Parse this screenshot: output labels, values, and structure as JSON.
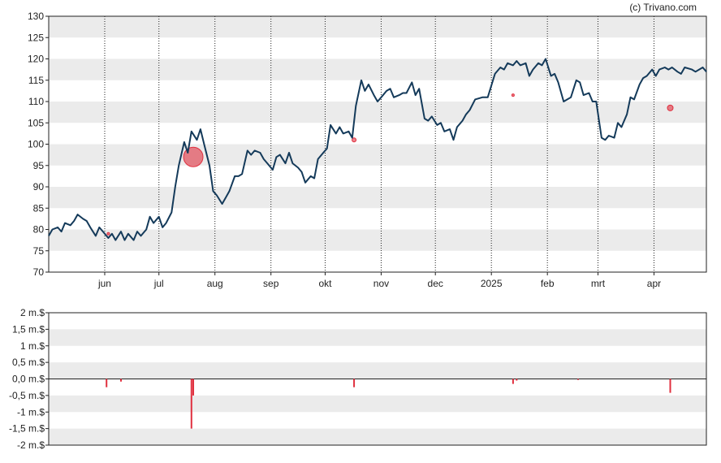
{
  "copyright": "(c) Trivano.com",
  "chart_data": [
    {
      "type": "line",
      "ylim": [
        70,
        130
      ],
      "yticks": [
        70,
        75,
        80,
        85,
        90,
        95,
        100,
        105,
        110,
        115,
        120,
        125,
        130
      ],
      "grid": true,
      "x_start": "2024-05-01",
      "x_end": "2025-04-30",
      "month_ticks": [
        {
          "label": "jun",
          "date": "2024-06-01"
        },
        {
          "label": "jul",
          "date": "2024-07-01"
        },
        {
          "label": "aug",
          "date": "2024-08-01"
        },
        {
          "label": "sep",
          "date": "2024-09-01"
        },
        {
          "label": "okt",
          "date": "2024-10-01"
        },
        {
          "label": "nov",
          "date": "2024-11-01"
        },
        {
          "label": "dec",
          "date": "2024-12-01"
        },
        {
          "label": "2025",
          "date": "2025-01-01"
        },
        {
          "label": "feb",
          "date": "2025-02-01"
        },
        {
          "label": "mrt",
          "date": "2025-03-01"
        },
        {
          "label": "apr",
          "date": "2025-04-01"
        }
      ],
      "line_color": "#143a5a",
      "marker_color": "#e0303f",
      "price_series": [
        [
          "2024-05-01",
          78.5
        ],
        [
          "2024-05-03",
          80.0
        ],
        [
          "2024-05-06",
          80.5
        ],
        [
          "2024-05-08",
          79.5
        ],
        [
          "2024-05-10",
          81.5
        ],
        [
          "2024-05-13",
          81.0
        ],
        [
          "2024-05-15",
          82.0
        ],
        [
          "2024-05-17",
          83.5
        ],
        [
          "2024-05-20",
          82.5
        ],
        [
          "2024-05-22",
          82.0
        ],
        [
          "2024-05-24",
          80.5
        ],
        [
          "2024-05-27",
          78.5
        ],
        [
          "2024-05-29",
          80.5
        ],
        [
          "2024-05-31",
          79.5
        ],
        [
          "2024-06-03",
          78.0
        ],
        [
          "2024-06-05",
          79.0
        ],
        [
          "2024-06-07",
          77.5
        ],
        [
          "2024-06-10",
          79.5
        ],
        [
          "2024-06-12",
          77.5
        ],
        [
          "2024-06-14",
          79.0
        ],
        [
          "2024-06-17",
          77.5
        ],
        [
          "2024-06-19",
          79.5
        ],
        [
          "2024-06-21",
          78.5
        ],
        [
          "2024-06-24",
          80.0
        ],
        [
          "2024-06-26",
          83.0
        ],
        [
          "2024-06-28",
          81.5
        ],
        [
          "2024-07-01",
          83.0
        ],
        [
          "2024-07-03",
          80.5
        ],
        [
          "2024-07-05",
          81.5
        ],
        [
          "2024-07-08",
          84.0
        ],
        [
          "2024-07-10",
          90.0
        ],
        [
          "2024-07-12",
          95.0
        ],
        [
          "2024-07-15",
          100.5
        ],
        [
          "2024-07-17",
          98.0
        ],
        [
          "2024-07-19",
          103.0
        ],
        [
          "2024-07-22",
          101.0
        ],
        [
          "2024-07-24",
          103.5
        ],
        [
          "2024-07-26",
          100.0
        ],
        [
          "2024-07-29",
          95.0
        ],
        [
          "2024-07-31",
          89.0
        ],
        [
          "2024-08-02",
          88.0
        ],
        [
          "2024-08-05",
          86.0
        ],
        [
          "2024-08-07",
          87.5
        ],
        [
          "2024-08-09",
          89.0
        ],
        [
          "2024-08-12",
          92.5
        ],
        [
          "2024-08-14",
          92.5
        ],
        [
          "2024-08-16",
          93.0
        ],
        [
          "2024-08-19",
          98.5
        ],
        [
          "2024-08-21",
          97.5
        ],
        [
          "2024-08-23",
          98.5
        ],
        [
          "2024-08-26",
          98.0
        ],
        [
          "2024-08-28",
          96.5
        ],
        [
          "2024-08-30",
          95.5
        ],
        [
          "2024-09-02",
          94.0
        ],
        [
          "2024-09-04",
          97.0
        ],
        [
          "2024-09-06",
          97.5
        ],
        [
          "2024-09-09",
          95.5
        ],
        [
          "2024-09-11",
          98.0
        ],
        [
          "2024-09-13",
          95.5
        ],
        [
          "2024-09-16",
          94.5
        ],
        [
          "2024-09-18",
          93.5
        ],
        [
          "2024-09-20",
          91.0
        ],
        [
          "2024-09-23",
          92.5
        ],
        [
          "2024-09-25",
          92.0
        ],
        [
          "2024-09-27",
          96.5
        ],
        [
          "2024-09-30",
          98.0
        ],
        [
          "2024-10-02",
          99.0
        ],
        [
          "2024-10-04",
          104.5
        ],
        [
          "2024-10-07",
          102.5
        ],
        [
          "2024-10-09",
          104.0
        ],
        [
          "2024-10-11",
          102.5
        ],
        [
          "2024-10-14",
          103.0
        ],
        [
          "2024-10-16",
          101.5
        ],
        [
          "2024-10-18",
          109.0
        ],
        [
          "2024-10-21",
          115.0
        ],
        [
          "2024-10-23",
          112.5
        ],
        [
          "2024-10-25",
          114.0
        ],
        [
          "2024-10-28",
          111.5
        ],
        [
          "2024-10-30",
          110.0
        ],
        [
          "2024-11-01",
          111.0
        ],
        [
          "2024-11-04",
          112.5
        ],
        [
          "2024-11-06",
          113.0
        ],
        [
          "2024-11-08",
          111.0
        ],
        [
          "2024-11-11",
          111.5
        ],
        [
          "2024-11-13",
          112.0
        ],
        [
          "2024-11-15",
          112.0
        ],
        [
          "2024-11-18",
          114.5
        ],
        [
          "2024-11-20",
          111.5
        ],
        [
          "2024-11-22",
          113.0
        ],
        [
          "2024-11-25",
          106.0
        ],
        [
          "2024-11-27",
          105.5
        ],
        [
          "2024-11-29",
          106.5
        ],
        [
          "2024-12-02",
          104.5
        ],
        [
          "2024-12-04",
          105.0
        ],
        [
          "2024-12-06",
          103.0
        ],
        [
          "2024-12-09",
          103.5
        ],
        [
          "2024-12-11",
          101.0
        ],
        [
          "2024-12-13",
          104.0
        ],
        [
          "2024-12-16",
          105.5
        ],
        [
          "2024-12-18",
          107.0
        ],
        [
          "2024-12-20",
          108.0
        ],
        [
          "2024-12-23",
          110.5
        ],
        [
          "2024-12-27",
          111.0
        ],
        [
          "2024-12-30",
          111.0
        ],
        [
          "2025-01-03",
          116.5
        ],
        [
          "2025-01-06",
          118.0
        ],
        [
          "2025-01-08",
          117.5
        ],
        [
          "2025-01-10",
          119.0
        ],
        [
          "2025-01-13",
          118.5
        ],
        [
          "2025-01-15",
          119.5
        ],
        [
          "2025-01-17",
          118.5
        ],
        [
          "2025-01-20",
          119.0
        ],
        [
          "2025-01-22",
          116.0
        ],
        [
          "2025-01-24",
          117.5
        ],
        [
          "2025-01-27",
          119.0
        ],
        [
          "2025-01-29",
          118.5
        ],
        [
          "2025-01-31",
          120.0
        ],
        [
          "2025-02-03",
          116.0
        ],
        [
          "2025-02-05",
          116.5
        ],
        [
          "2025-02-07",
          114.5
        ],
        [
          "2025-02-10",
          110.0
        ],
        [
          "2025-02-12",
          110.5
        ],
        [
          "2025-02-14",
          111.0
        ],
        [
          "2025-02-17",
          115.0
        ],
        [
          "2025-02-19",
          114.5
        ],
        [
          "2025-02-21",
          111.5
        ],
        [
          "2025-02-24",
          112.0
        ],
        [
          "2025-02-26",
          110.0
        ],
        [
          "2025-02-28",
          110.0
        ],
        [
          "2025-03-03",
          101.5
        ],
        [
          "2025-03-05",
          101.0
        ],
        [
          "2025-03-07",
          102.0
        ],
        [
          "2025-03-10",
          101.5
        ],
        [
          "2025-03-12",
          105.0
        ],
        [
          "2025-03-14",
          104.0
        ],
        [
          "2025-03-17",
          107.0
        ],
        [
          "2025-03-19",
          111.0
        ],
        [
          "2025-03-21",
          110.5
        ],
        [
          "2025-03-24",
          114.0
        ],
        [
          "2025-03-26",
          115.5
        ],
        [
          "2025-03-28",
          116.0
        ],
        [
          "2025-03-31",
          117.5
        ],
        [
          "2025-04-02",
          116.0
        ],
        [
          "2025-04-04",
          117.5
        ],
        [
          "2025-04-07",
          118.0
        ],
        [
          "2025-04-09",
          117.5
        ],
        [
          "2025-04-11",
          118.0
        ],
        [
          "2025-04-14",
          117.0
        ],
        [
          "2025-04-16",
          116.5
        ],
        [
          "2025-04-18",
          118.0
        ],
        [
          "2025-04-22",
          117.5
        ],
        [
          "2025-04-24",
          117.0
        ],
        [
          "2025-04-28",
          118.0
        ],
        [
          "2025-04-30",
          117.0
        ]
      ],
      "markers": [
        {
          "date": "2024-06-03",
          "value": 79.0,
          "size": 1.5
        },
        {
          "date": "2024-07-20",
          "value": 97.0,
          "size": 12
        },
        {
          "date": "2024-10-17",
          "value": 101.0,
          "size": 2.5
        },
        {
          "date": "2025-01-13",
          "value": 111.5,
          "size": 1.5
        },
        {
          "date": "2025-04-10",
          "value": 108.5,
          "size": 3.5
        }
      ]
    },
    {
      "type": "bar",
      "ylim": [
        -2,
        2
      ],
      "ytick_labels": [
        {
          "value": 2,
          "label": "2 m.$"
        },
        {
          "value": 1.5,
          "label": "1,5 m.$"
        },
        {
          "value": 1,
          "label": "1 m.$"
        },
        {
          "value": 0.5,
          "label": "0,5 m.$"
        },
        {
          "value": 0,
          "label": "0,0 m.$"
        },
        {
          "value": -0.5,
          "label": "-0,5 m.$"
        },
        {
          "value": -1,
          "label": "-1 m.$"
        },
        {
          "value": -1.5,
          "label": "-1,5 m.$"
        },
        {
          "value": -2,
          "label": "-2 m.$"
        }
      ],
      "grid": true,
      "bar_color": "#e0303f",
      "bars": [
        {
          "date": "2024-06-02",
          "value": -0.25
        },
        {
          "date": "2024-06-10",
          "value": -0.08
        },
        {
          "date": "2024-07-19",
          "value": -1.5
        },
        {
          "date": "2024-07-20",
          "value": -0.5
        },
        {
          "date": "2024-10-17",
          "value": -0.25
        },
        {
          "date": "2025-01-13",
          "value": -0.15
        },
        {
          "date": "2025-01-15",
          "value": -0.05
        },
        {
          "date": "2025-02-18",
          "value": -0.03
        },
        {
          "date": "2025-04-10",
          "value": -0.42
        }
      ]
    }
  ]
}
